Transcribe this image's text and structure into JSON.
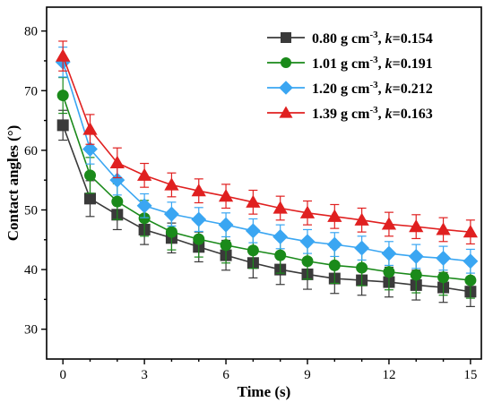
{
  "chart_data": {
    "type": "line",
    "xlabel": "Time (s)",
    "ylabel": "Contact angles (°)",
    "xlim": [
      -0.6,
      15.4
    ],
    "ylim": [
      25,
      84
    ],
    "xticks": [
      0,
      3,
      6,
      9,
      12,
      15
    ],
    "yticks": [
      30,
      40,
      50,
      60,
      70,
      80
    ],
    "grid": false,
    "legend_position": "top-right",
    "x": [
      0,
      1,
      2,
      3,
      4,
      5,
      6,
      7,
      8,
      9,
      10,
      11,
      12,
      13,
      14,
      15
    ],
    "series": [
      {
        "legend": {
          "prefix": "0.80 g cm",
          "sup": "-3",
          "mid": ", ",
          "k": "k",
          "suffix": "=0.154"
        },
        "color": "#3a3a3a",
        "marker": "square",
        "values": [
          64.2,
          51.9,
          49.2,
          46.7,
          45.3,
          43.8,
          42.4,
          41.1,
          40.0,
          39.2,
          38.5,
          38.2,
          37.9,
          37.4,
          37.0,
          36.3
        ],
        "error": [
          2.5,
          3.0,
          2.5,
          2.5,
          2.5,
          2.5,
          2.5,
          2.5,
          2.5,
          2.5,
          2.5,
          2.5,
          2.5,
          2.5,
          2.5,
          2.5
        ]
      },
      {
        "legend": {
          "prefix": "1.01 g cm",
          "sup": "-3",
          "mid": ", ",
          "k": "k",
          "suffix": "=0.191"
        },
        "color": "#1a8a1a",
        "marker": "circle",
        "values": [
          69.2,
          55.8,
          51.4,
          48.6,
          46.3,
          45.1,
          44.1,
          43.2,
          42.4,
          41.4,
          40.7,
          40.3,
          39.6,
          39.1,
          38.7,
          38.2
        ],
        "error": [
          3.0,
          3.0,
          3.0,
          3.0,
          3.0,
          3.0,
          3.0,
          3.0,
          3.0,
          3.0,
          3.0,
          3.0,
          3.0,
          3.0,
          3.0,
          3.0
        ]
      },
      {
        "legend": {
          "prefix": "1.20 g cm",
          "sup": "-3",
          "mid": ", ",
          "k": "k",
          "suffix": "=0.212"
        },
        "color": "#3aa6f2",
        "marker": "diamond",
        "values": [
          74.8,
          60.2,
          55.0,
          50.7,
          49.3,
          48.4,
          47.5,
          46.5,
          45.5,
          44.7,
          44.2,
          43.6,
          42.7,
          42.2,
          41.9,
          41.4
        ],
        "error": [
          2.5,
          2.5,
          2.5,
          2.0,
          2.0,
          2.0,
          2.0,
          2.0,
          2.0,
          2.0,
          2.0,
          2.0,
          2.0,
          2.0,
          2.0,
          2.0
        ]
      },
      {
        "legend": {
          "prefix": "1.39 g cm",
          "sup": "-3",
          "mid": ", ",
          "k": "k",
          "suffix": "=0.163"
        },
        "color": "#e02020",
        "marker": "triangle",
        "values": [
          75.8,
          63.5,
          57.9,
          55.8,
          54.2,
          53.2,
          52.3,
          51.3,
          50.3,
          49.5,
          48.9,
          48.3,
          47.6,
          47.2,
          46.7,
          46.3
        ],
        "error": [
          2.5,
          2.5,
          2.5,
          2.0,
          2.0,
          2.0,
          2.0,
          2.0,
          2.0,
          2.0,
          2.0,
          2.0,
          2.0,
          2.0,
          2.0,
          2.0
        ]
      }
    ]
  }
}
